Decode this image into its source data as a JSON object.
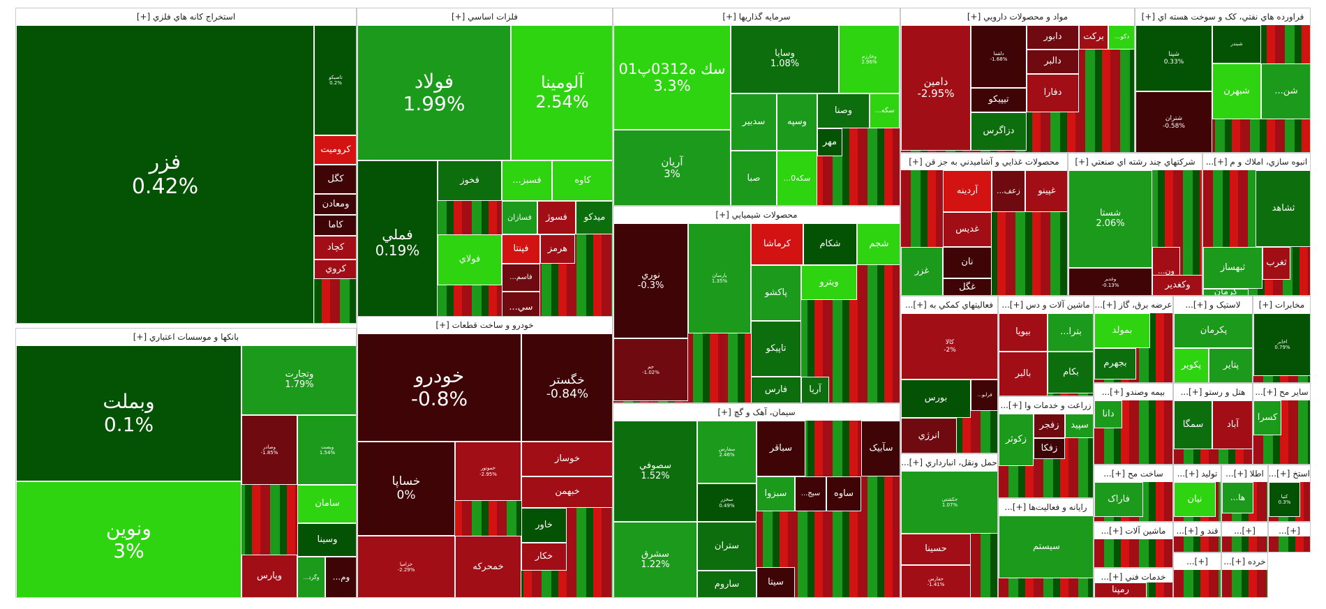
{
  "chart_data": {
    "type": "treemap",
    "colors": {
      "up_strong": "#2ed410",
      "up_mid": "#1b9a1b",
      "up_dark": "#0d6e0d",
      "up_darkest": "#045204",
      "down_strong": "#d31212",
      "down_mid": "#a10e16",
      "down_dark": "#6e0a10",
      "down_darkest": "#3e0406"
    },
    "sectors": [
      {
        "title": "استخراج کانه هاي فلزي [+]",
        "stocks": [
          {
            "name": "فزر",
            "change": "0.42%",
            "color": "up_darkest"
          },
          {
            "name": "تاصيکو",
            "change": "0.2%",
            "color": "up_darkest"
          },
          {
            "name": "کروميت",
            "color": "down_strong"
          },
          {
            "name": "کگل",
            "color": "down_darkest"
          },
          {
            "name": "ومعادن",
            "color": "down_darkest"
          },
          {
            "name": "کاما",
            "color": "down_darkest"
          },
          {
            "name": "کچاد",
            "color": "down_mid"
          },
          {
            "name": "کروي",
            "color": "down_mid"
          }
        ]
      },
      {
        "title": "فلزات اساسي [+]",
        "stocks": [
          {
            "name": "فولاد",
            "change": "1.99%",
            "color": "up_mid"
          },
          {
            "name": "آلومينا",
            "change": "2.54%",
            "color": "up_strong"
          },
          {
            "name": "فملي",
            "change": "0.19%",
            "color": "up_darkest"
          },
          {
            "name": "فخوز",
            "color": "up_dark"
          },
          {
            "name": "...فسبز",
            "color": "up_strong"
          },
          {
            "name": "کاوه",
            "color": "up_strong"
          },
          {
            "name": "فسازان",
            "color": "up_mid"
          },
          {
            "name": "فسوژ",
            "color": "down_mid"
          },
          {
            "name": "ميدکو",
            "color": "up_dark"
          },
          {
            "name": "فولاي",
            "color": "up_strong"
          },
          {
            "name": "فپنتا",
            "color": "down_strong"
          },
          {
            "name": "هرمز",
            "color": "down_mid"
          },
          {
            "name": "...فاسم",
            "color": "down_dark"
          },
          {
            "name": "...سي",
            "color": "down_dark"
          }
        ]
      },
      {
        "title": "سرمايه گذاريها [+]",
        "stocks": [
          {
            "name": "سك ه0312پ01",
            "change": "3.3%",
            "color": "up_strong"
          },
          {
            "name": "وسايا",
            "change": "1.08%",
            "color": "up_dark"
          },
          {
            "name": "وخارزم",
            "change": "2.96%",
            "color": "up_strong"
          },
          {
            "name": "آريان",
            "change": "3%",
            "color": "up_mid"
          },
          {
            "name": "سدبير",
            "color": "up_mid"
          },
          {
            "name": "وسپه",
            "color": "up_mid"
          },
          {
            "name": "وصنا",
            "color": "up_dark"
          },
          {
            "name": "...سکه",
            "color": "up_strong"
          },
          {
            "name": "صبا",
            "color": "up_mid"
          },
          {
            "name": "...سکه0",
            "color": "up_strong"
          },
          {
            "name": "مهر",
            "color": "up_darkest"
          }
        ]
      },
      {
        "title": "مواد و محصولات دارويي [+]",
        "stocks": [
          {
            "name": "دامين",
            "change": "-2.95%",
            "color": "down_mid"
          },
          {
            "name": "دلقما",
            "change": "-1.68%",
            "color": "down_darkest"
          },
          {
            "name": "دابور",
            "color": "down_dark"
          },
          {
            "name": "برکت",
            "color": "down_mid"
          },
          {
            "name": "...دکو",
            "color": "up_strong"
          },
          {
            "name": "دالبر",
            "color": "down_dark"
          },
          {
            "name": "تيپيکو",
            "color": "down_darkest"
          },
          {
            "name": "دفارا",
            "color": "down_mid"
          },
          {
            "name": "دزاگرس",
            "color": "up_dark"
          }
        ]
      },
      {
        "title": "فراورده هاي نفتي، کک و سوخت هسته اي [+]",
        "stocks": [
          {
            "name": "شپنا",
            "change": "0.33%",
            "color": "up_darkest"
          },
          {
            "name": "شبندر",
            "color": "up_darkest"
          },
          {
            "name": "شتران",
            "change": "-0.58%",
            "color": "down_darkest"
          },
          {
            "name": "شبهرن",
            "color": "up_strong"
          },
          {
            "name": "...شن",
            "color": "up_mid"
          }
        ]
      },
      {
        "title": "محصولات غذايي و آشاميدني به جز قن [+]",
        "stocks": [
          {
            "name": "آردينه",
            "color": "down_strong"
          },
          {
            "name": "...زعف",
            "color": "down_dark"
          },
          {
            "name": "غپينو",
            "color": "down_mid"
          },
          {
            "name": "غديس",
            "color": "down_mid"
          },
          {
            "name": "غزر",
            "color": "up_mid"
          },
          {
            "name": "نان",
            "color": "down_darkest"
          },
          {
            "name": "غگل",
            "color": "down_darkest"
          }
        ]
      },
      {
        "title": "شرکتهاي چند رشته اي صنعتي [+]",
        "stocks": [
          {
            "name": "شستا",
            "change": "2.06%",
            "color": "up_mid"
          },
          {
            "name": "وغدير",
            "change": "-0.13%",
            "color": "down_darkest"
          },
          {
            "name": "...ون",
            "color": "down_mid"
          },
          {
            "name": "وکغدير",
            "color": "down_mid"
          }
        ]
      },
      {
        "title": "انبوه سازي، املاك و م [+]...",
        "stocks": [
          {
            "name": "ثشاهد",
            "color": "up_dark"
          },
          {
            "name": "ثغرب",
            "color": "down_mid"
          },
          {
            "name": "ثبهساز",
            "color": "up_mid"
          },
          {
            "name": "کرمان",
            "color": "up_mid"
          }
        ]
      },
      {
        "title": "محصولات شيميايي [+]",
        "stocks": [
          {
            "name": "نوري",
            "change": "-0.3%",
            "color": "down_darkest"
          },
          {
            "name": "پارسان",
            "change": "1.35%",
            "color": "up_mid"
          },
          {
            "name": "کرماشا",
            "color": "down_strong"
          },
          {
            "name": "شکام",
            "color": "up_darkest"
          },
          {
            "name": "شجم",
            "color": "up_strong"
          },
          {
            "name": "پاکشو",
            "color": "up_mid"
          },
          {
            "name": "ويترو",
            "color": "up_strong"
          },
          {
            "name": "تاپيکو",
            "color": "up_dark"
          },
          {
            "name": "جم",
            "change": "-1.02%",
            "color": "down_dark"
          },
          {
            "name": "فارس",
            "color": "up_dark"
          },
          {
            "name": "آريا",
            "color": "up_dark"
          }
        ]
      },
      {
        "title": "فعاليتهاي کمکي به [+]...",
        "stocks": [
          {
            "name": "کالا",
            "change": "-2%",
            "color": "down_mid"
          },
          {
            "name": "بورس",
            "color": "up_darkest"
          },
          {
            "name": "...فرابو",
            "color": "down_darkest"
          },
          {
            "name": "انرژي",
            "color": "down_dark"
          }
        ]
      },
      {
        "title": "ماشين آلات و دس [+]...",
        "stocks": [
          {
            "name": "بيويا",
            "color": "down_mid"
          },
          {
            "name": "...بترا",
            "color": "up_mid"
          },
          {
            "name": "بالبر",
            "color": "down_mid"
          },
          {
            "name": "بکام",
            "color": "up_dark"
          }
        ]
      },
      {
        "title": "عرضه برق، گاز [+]...",
        "stocks": [
          {
            "name": "بمولد",
            "color": "up_strong"
          },
          {
            "name": "بجهرم",
            "color": "up_dark"
          }
        ]
      },
      {
        "title": "لاستيک و [+]...",
        "stocks": [
          {
            "name": "پکرمان",
            "color": "up_mid"
          },
          {
            "name": "پکوير",
            "color": "up_strong"
          },
          {
            "name": "پتاير",
            "color": "up_mid"
          }
        ]
      },
      {
        "title": "مخابرات [+]",
        "stocks": [
          {
            "name": "اخابر",
            "change": "0.79%",
            "color": "up_darkest"
          }
        ]
      },
      {
        "title": "بانکها و موسسات اعتباري [+]",
        "stocks": [
          {
            "name": "وبملت",
            "change": "0.1%",
            "color": "up_darkest"
          },
          {
            "name": "وتجارت",
            "change": "1.79%",
            "color": "up_mid"
          },
          {
            "name": "ونوين",
            "change": "3%",
            "color": "up_strong"
          },
          {
            "name": "وصادر",
            "change": "-1.85%",
            "color": "down_dark"
          },
          {
            "name": "وبصت",
            "change": "1.54%",
            "color": "up_mid"
          },
          {
            "name": "سامان",
            "color": "up_strong"
          },
          {
            "name": "وسينا",
            "color": "up_darkest"
          },
          {
            "name": "وپارس",
            "color": "down_mid"
          },
          {
            "name": "...وگرد",
            "color": "up_mid"
          },
          {
            "name": "...وم",
            "color": "down_darkest"
          }
        ]
      },
      {
        "title": "خودرو و ساخت قطعات [+]",
        "stocks": [
          {
            "name": "خودرو",
            "change": "-0.8%",
            "color": "down_darkest"
          },
          {
            "name": "خگستر",
            "change": "-0.84%",
            "color": "down_darkest"
          },
          {
            "name": "خساپا",
            "change": "0%",
            "color": "down_darkest"
          },
          {
            "name": "خموتور",
            "change": "-2.95%",
            "color": "down_mid"
          },
          {
            "name": "خوساز",
            "color": "down_mid"
          },
          {
            "name": "خبهمن",
            "color": "down_mid"
          },
          {
            "name": "خاور",
            "color": "up_darkest"
          },
          {
            "name": "خکار",
            "color": "down_mid"
          },
          {
            "name": "خزاميا",
            "change": "-2.29%",
            "color": "down_mid"
          },
          {
            "name": "خمحرکه",
            "color": "down_mid"
          }
        ]
      },
      {
        "title": "سيمان، آهک و گچ [+]",
        "stocks": [
          {
            "name": "سصوفي",
            "change": "1.52%",
            "color": "up_dark"
          },
          {
            "name": "سفارس",
            "change": "2.46%",
            "color": "up_mid"
          },
          {
            "name": "ستران",
            "color": "up_dark"
          },
          {
            "name": "سباقر",
            "color": "down_darkest"
          },
          {
            "name": "سبزوا",
            "color": "up_mid"
          },
          {
            "name": "...سيج",
            "color": "down_darkest"
          },
          {
            "name": "ساوه",
            "color": "down_darkest"
          },
          {
            "name": "سآبيک",
            "color": "down_darkest"
          },
          {
            "name": "سشرق",
            "change": "1.22%",
            "color": "up_mid"
          },
          {
            "name": "ساروم",
            "color": "up_dark"
          },
          {
            "name": "سيتا",
            "color": "down_darkest"
          },
          {
            "name": "سخزر",
            "change": "0.49%",
            "color": "up_darkest"
          }
        ]
      },
      {
        "title": "حمل ونقل، انبارداري [+]...",
        "stocks": [
          {
            "name": "حکشتي",
            "change": "1.07%",
            "color": "up_mid"
          },
          {
            "name": "حسينا",
            "color": "down_mid"
          },
          {
            "name": "حفارس",
            "change": "-1.41%",
            "color": "down_mid"
          }
        ]
      },
      {
        "title": "زراعت و خدمات وا [+]...",
        "stocks": [
          {
            "name": "زکوثر",
            "color": "up_mid"
          },
          {
            "name": "زفجر",
            "color": "down_dark"
          },
          {
            "name": "سپيد",
            "color": "up_mid"
          },
          {
            "name": "زفکا",
            "color": "down_darkest"
          }
        ]
      },
      {
        "title": "رايانه و فعاليت‌ها [+]...",
        "stocks": [
          {
            "name": "سيستم",
            "color": "up_mid"
          }
        ]
      },
      {
        "title": "بيمه وصندو [+]...",
        "stocks": [
          {
            "name": "دانا",
            "color": "up_mid"
          }
        ]
      },
      {
        "title": "هتل و رستو [+]...",
        "stocks": [
          {
            "name": "سمگا",
            "color": "up_dark"
          },
          {
            "name": "آباد",
            "color": "down_mid"
          }
        ]
      },
      {
        "title": "ساير مح [+]...",
        "stocks": [
          {
            "name": "کسرا",
            "color": "up_mid"
          }
        ]
      },
      {
        "title": "ساخت مح [+]...",
        "stocks": [
          {
            "name": "فاراک",
            "color": "up_mid"
          }
        ]
      },
      {
        "title": "تولید [+]...",
        "stocks": [
          {
            "name": "نيان",
            "color": "up_strong"
          }
        ]
      },
      {
        "title": "اطلا [+]...",
        "stocks": [
          {
            "name": "...ها",
            "color": "up_mid"
          }
        ]
      },
      {
        "title": "استخ [+]...",
        "stocks": [
          {
            "name": "کتيا",
            "change": "0.3%",
            "color": "up_darkest"
          }
        ]
      },
      {
        "title": "ماشين آلات [+]...",
        "stocks": []
      },
      {
        "title": "خدمات فني [+]...",
        "stocks": [
          {
            "name": "رمپنا",
            "color": "down_mid"
          }
        ]
      },
      {
        "title": "قند و [+]...",
        "stocks": []
      },
      {
        "title": "[+]...",
        "stocks": []
      },
      {
        "title": "[+]...",
        "stocks": []
      },
      {
        "title": "[+]...",
        "stocks": []
      },
      {
        "title": "خرده [+]...",
        "stocks": []
      },
      {
        "title": "...م [+]",
        "stocks": []
      }
    ]
  }
}
